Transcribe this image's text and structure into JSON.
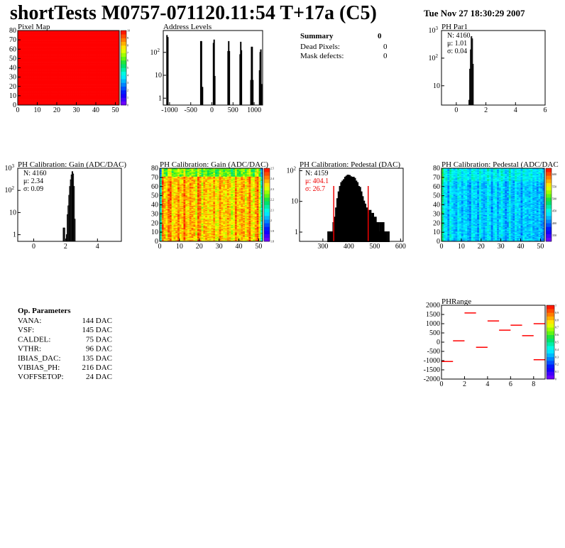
{
  "header": {
    "title": "shortTests M0757-071120.11:54 T+17a (C5)",
    "date": "Tue Nov 27 18:30:29 2007"
  },
  "summary": {
    "title": "Summary",
    "total": "0",
    "rows": [
      {
        "label": "Dead Pixels:",
        "value": "0"
      },
      {
        "label": "Mask defects:",
        "value": "0"
      }
    ]
  },
  "op_params": {
    "title": "Op. Parameters",
    "rows": [
      {
        "label": "VANA:",
        "value": "144 DAC"
      },
      {
        "label": "VSF:",
        "value": "145 DAC"
      },
      {
        "label": "CALDEL:",
        "value": "75 DAC"
      },
      {
        "label": "VTHR:",
        "value": "96 DAC"
      },
      {
        "label": "IBIAS_DAC:",
        "value": "135 DAC"
      },
      {
        "label": "VIBIAS_PH:",
        "value": "216 DAC"
      },
      {
        "label": "VOFFSETOP:",
        "value": "24 DAC"
      }
    ]
  },
  "chart_data": [
    {
      "id": "pixel-map",
      "type": "heatmap",
      "title": "Pixel Map",
      "xlim": [
        0,
        52
      ],
      "ylim": [
        0,
        80
      ],
      "xticks": [
        "0",
        "10",
        "20",
        "30",
        "40",
        "50"
      ],
      "yticks": [
        "0",
        "10",
        "20",
        "30",
        "40",
        "50",
        "60",
        "70",
        "80"
      ],
      "zlim": [
        0,
        10
      ],
      "zticks": [
        "0",
        "1",
        "2",
        "3",
        "4",
        "5",
        "6",
        "7",
        "8",
        "9",
        "10"
      ],
      "uniform_value": 10
    },
    {
      "id": "address-levels",
      "type": "bar",
      "title": "Address Levels",
      "xlim": [
        -1150,
        1200
      ],
      "ylim": [
        0.5,
        900
      ],
      "log_y": true,
      "xticks": [
        "-1000",
        "-500",
        "0",
        "500",
        "1000"
      ],
      "yticks": [
        "1",
        "10",
        "10^2"
      ],
      "bins": [
        [
          -1070,
          550
        ],
        [
          -1050,
          450
        ],
        [
          -270,
          300
        ],
        [
          -255,
          300
        ],
        [
          -240,
          2
        ],
        [
          -230,
          3
        ],
        [
          30,
          250
        ],
        [
          45,
          350
        ],
        [
          60,
          9
        ],
        [
          375,
          110
        ],
        [
          390,
          300
        ],
        [
          405,
          110
        ],
        [
          660,
          80
        ],
        [
          675,
          280
        ],
        [
          690,
          120
        ],
        [
          915,
          6
        ],
        [
          930,
          170
        ],
        [
          945,
          170
        ],
        [
          960,
          6
        ],
        [
          1120,
          16
        ],
        [
          1135,
          100
        ],
        [
          1150,
          130
        ],
        [
          1165,
          4
        ]
      ]
    },
    {
      "id": "ph-par1",
      "type": "bar",
      "title": "PH Par1",
      "xlim": [
        -1,
        6
      ],
      "ylim": [
        2,
        1000
      ],
      "log_y": true,
      "xticks": [
        "0",
        "2",
        "4",
        "6"
      ],
      "yticks": [
        "10",
        "10^2",
        "10^3"
      ],
      "stats": {
        "N": "N: 4160",
        "mean": "μ: 1.01",
        "sigma": "σ: 0.04"
      },
      "bins": [
        [
          0.85,
          3
        ],
        [
          0.9,
          40
        ],
        [
          0.95,
          200
        ],
        [
          1.0,
          600
        ],
        [
          1.05,
          500
        ],
        [
          1.1,
          60
        ]
      ]
    },
    {
      "id": "gain-hist",
      "type": "bar",
      "title": "PH Calibration: Gain (ADC/DAC)",
      "xlim": [
        -1,
        5.5
      ],
      "ylim": [
        0.5,
        1000
      ],
      "log_y": true,
      "xticks": [
        "0",
        "2",
        "4"
      ],
      "yticks": [
        "1",
        "10",
        "10^2",
        "10^3"
      ],
      "stats": {
        "N": "N: 4160",
        "mean": "μ: 2.34",
        "sigma": "σ: 0.09"
      },
      "bins": [
        [
          1.85,
          2
        ],
        [
          1.9,
          2
        ],
        [
          2.05,
          1
        ],
        [
          2.1,
          8
        ],
        [
          2.15,
          20
        ],
        [
          2.2,
          60
        ],
        [
          2.25,
          150
        ],
        [
          2.3,
          300
        ],
        [
          2.35,
          500
        ],
        [
          2.4,
          700
        ],
        [
          2.45,
          550
        ],
        [
          2.5,
          150
        ],
        [
          2.55,
          5
        ]
      ]
    },
    {
      "id": "gain-map",
      "type": "heatmap",
      "title": "PH Calibration: Gain (ADC/DAC)",
      "xlim": [
        0,
        52
      ],
      "ylim": [
        0,
        80
      ],
      "xticks": [
        "0",
        "10",
        "20",
        "30",
        "40",
        "50"
      ],
      "yticks": [
        "0",
        "10",
        "20",
        "30",
        "40",
        "50",
        "60",
        "70",
        "80"
      ],
      "zlim": [
        1.8,
        2.5
      ],
      "zticks": [
        "1.8",
        "1.9",
        "2",
        "2.1",
        "2.2",
        "2.3",
        "2.4",
        "2.5"
      ],
      "mean": 2.36,
      "spread": 0.08
    },
    {
      "id": "pedestal-hist",
      "type": "bar",
      "title": "PH Calibration: Pedestal (DAC)",
      "xlim": [
        210,
        610
      ],
      "ylim": [
        0.5,
        120
      ],
      "log_y": true,
      "xticks": [
        "300",
        "400",
        "500",
        "600"
      ],
      "yticks": [
        "1",
        "10",
        "10^2"
      ],
      "stats": {
        "N": "N: 4159",
        "mean": "μ: 404.1",
        "sigma": "σ: 26.7"
      },
      "fit_range": [
        342,
        475
      ],
      "bins": [
        [
          320,
          1
        ],
        [
          330,
          1
        ],
        [
          340,
          2
        ],
        [
          345,
          3
        ],
        [
          350,
          6
        ],
        [
          355,
          12
        ],
        [
          360,
          20
        ],
        [
          365,
          30
        ],
        [
          370,
          40
        ],
        [
          375,
          45
        ],
        [
          380,
          50
        ],
        [
          385,
          60
        ],
        [
          390,
          65
        ],
        [
          395,
          70
        ],
        [
          400,
          68
        ],
        [
          405,
          62
        ],
        [
          410,
          58
        ],
        [
          415,
          60
        ],
        [
          420,
          55
        ],
        [
          425,
          45
        ],
        [
          430,
          40
        ],
        [
          435,
          30
        ],
        [
          440,
          28
        ],
        [
          445,
          20
        ],
        [
          450,
          14
        ],
        [
          455,
          10
        ],
        [
          460,
          8
        ],
        [
          465,
          6
        ],
        [
          470,
          5
        ],
        [
          475,
          4
        ],
        [
          480,
          5
        ],
        [
          485,
          3
        ],
        [
          490,
          4
        ],
        [
          495,
          2
        ],
        [
          500,
          3
        ],
        [
          505,
          2
        ],
        [
          510,
          2
        ],
        [
          515,
          1
        ],
        [
          520,
          2
        ],
        [
          525,
          1
        ],
        [
          530,
          2
        ],
        [
          540,
          1
        ],
        [
          550,
          1
        ]
      ]
    },
    {
      "id": "pedestal-map",
      "type": "heatmap",
      "title": "PH Calibration: Pedestal (ADC/DAC",
      "xlim": [
        0,
        52
      ],
      "ylim": [
        0,
        80
      ],
      "xticks": [
        "0",
        "10",
        "20",
        "30",
        "40",
        "50"
      ],
      "yticks": [
        "0",
        "10",
        "20",
        "30",
        "40",
        "50",
        "60",
        "70",
        "80"
      ],
      "zlim": [
        325,
        625
      ],
      "zticks": [
        "350",
        "400",
        "450",
        "500",
        "550",
        "600"
      ],
      "mean": 430,
      "spread": 25
    },
    {
      "id": "ph-range",
      "type": "scatter",
      "title": "PHRange",
      "xlim": [
        0,
        9
      ],
      "ylim": [
        -2000,
        2000
      ],
      "xticks": [
        "0",
        "2",
        "4",
        "6",
        "8"
      ],
      "yticks": [
        "2000",
        "1500",
        "1000",
        "500",
        "0",
        "-500",
        "-1000",
        "-1500",
        "-2000"
      ],
      "zlim": [
        0,
        1
      ],
      "zticks": [
        "0",
        "0.1",
        "0.2",
        "0.3",
        "0.4",
        "0.5",
        "0.6",
        "0.7",
        "0.8",
        "0.9",
        "1"
      ],
      "points": [
        [
          0,
          -1050
        ],
        [
          1,
          70
        ],
        [
          2,
          1580
        ],
        [
          3,
          -280
        ],
        [
          4,
          1150
        ],
        [
          5,
          650
        ],
        [
          6,
          920
        ],
        [
          7,
          350
        ],
        [
          8,
          1000
        ],
        [
          8,
          -950
        ]
      ]
    }
  ]
}
